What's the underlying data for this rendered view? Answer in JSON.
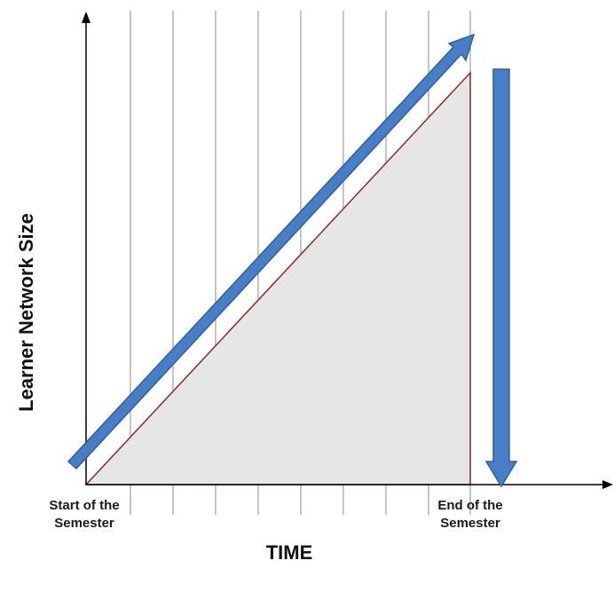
{
  "diagram": {
    "y_axis_title": "Learner Network Size",
    "x_axis_title": "TIME",
    "start_label": "Start of the\nSemester",
    "end_label": "End of the\nSemester",
    "colors": {
      "arrow_fill": "#4a7ec4",
      "arrow_stroke": "#2f5f9e",
      "triangle_fill": "#e6e6e6",
      "triangle_stroke": "#8b2a2a",
      "gridline": "#a6a6a6",
      "axis": "#000000"
    },
    "icons": {
      "growth_arrow": "diagonal-up-arrow-icon",
      "drop_arrow": "down-arrow-icon"
    }
  }
}
